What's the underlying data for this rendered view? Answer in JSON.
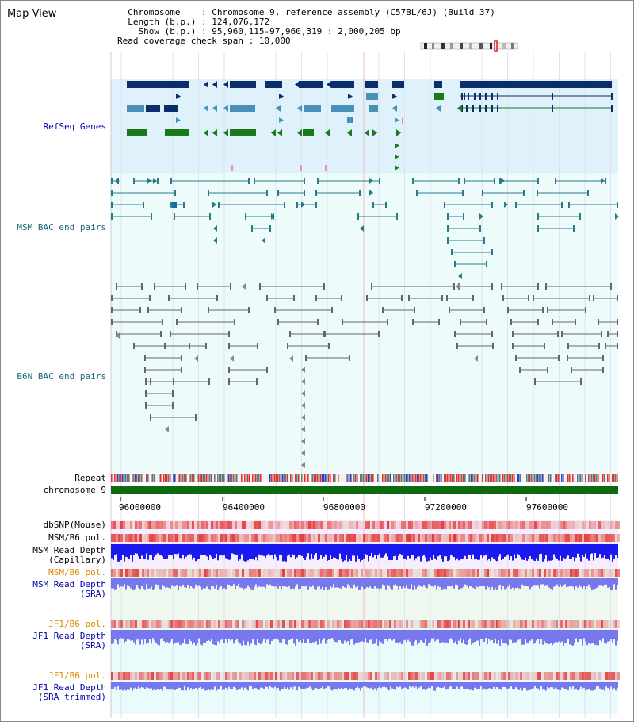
{
  "page": {
    "title": "Map View"
  },
  "info": {
    "chromosome_label": "Chromosome",
    "chromosome_value": "Chromosome 9, reference assembly (C57BL/6J) (Build 37)",
    "length_label": "Length (b.p.)",
    "length_value": "124,076,172",
    "show_label": "Show (b.p.)",
    "show_value": "95,960,115-97,960,319 : 2,000,205 bp",
    "coverage_label": "Read coverage check span",
    "coverage_value": "10,000"
  },
  "tracks": {
    "refseq": "RefSeq Genes",
    "msm_bac": "MSM BAC end pairs",
    "b6n_bac": "B6N BAC end pairs",
    "repeat": "Repeat",
    "chromosome": "chromosome 9",
    "dbsnp": "dbSNP(Mouse)",
    "msm_b6_pol": "MSM/B6 pol.",
    "msm_depth_cap_1": "MSM Read Depth",
    "msm_depth_cap_2": "(Capillary)",
    "msm_b6_pol_2": "MSM/B6 pol.",
    "msm_depth_sra_1": "MSM Read Depth",
    "msm_depth_sra_2": "(SRA)",
    "jf1_pol": "JF1/B6 pol.",
    "jf1_depth_1": "JF1 Read Depth",
    "jf1_depth_2": "(SRA)",
    "jf1_pol_2": "JF1/B6 pol.",
    "jf1_trim_1": "JF1 Read Depth",
    "jf1_trim_2": "(SRA trimmed)"
  },
  "axis": {
    "ticks": [
      "96000000",
      "96400000",
      "96800000",
      "97200000",
      "97600000"
    ]
  },
  "colors": {
    "refseq_bg": "#dff1fb",
    "bac_bg": "#eefbfb",
    "gene_dark": "#0b2d6b",
    "gene_mid": "#4a90b8",
    "gene_green": "#1a7a1a",
    "msm_bac": "#2a7a8a",
    "b6n_bac": "#666666",
    "chrom_green": "#0e6a0e",
    "blue_label": "#0000aa",
    "orange_label": "#dd8800",
    "teal_label": "#1a6a7a",
    "depth_blue": "#1a1aee",
    "depth_light": "#7777ee"
  }
}
